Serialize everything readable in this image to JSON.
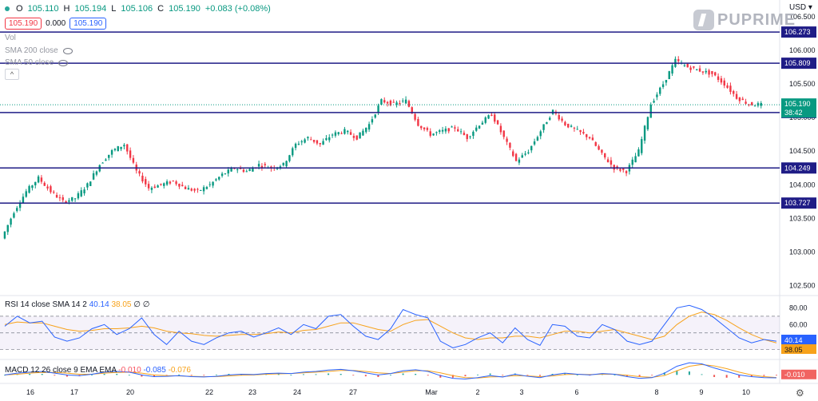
{
  "header": {
    "ohlc": {
      "open_label": "O",
      "open": "105.110",
      "high_label": "H",
      "high": "105.194",
      "low_label": "L",
      "low": "105.106",
      "close_label": "C",
      "close": "105.190",
      "change": "+0.083 (+0.08%)"
    },
    "sell": "105.190",
    "spread": "0.000",
    "buy": "105.190",
    "vol_label": "Vol",
    "sma200_label": "SMA 200 close",
    "sma50_label": "SMA 50 close",
    "currency": "USD",
    "brand": "PUPRIME"
  },
  "colors": {
    "up": "#089981",
    "down": "#f23645",
    "level_line": "#1f1c86",
    "rsi_line": "#2962ff",
    "rsi_ma": "#f7a21b",
    "macd_line": "#2962ff",
    "signal_line": "#f7a21b"
  },
  "chart_data": [
    {
      "type": "candlestick",
      "price_axis": {
        "ticks": [
          102.5,
          103.0,
          103.5,
          104.0,
          104.5,
          105.0,
          105.5,
          106.0,
          106.5
        ],
        "tick_labels": [
          "102.500",
          "103.000",
          "103.500",
          "104.000",
          "104.500",
          "105.000",
          "105.500",
          "106.000",
          "106.500"
        ],
        "range": [
          102.35,
          106.75
        ]
      },
      "x_ticks": [
        "16",
        "17",
        "20",
        "22",
        "23",
        "24",
        "27",
        "Mar",
        "2",
        "3",
        "6",
        "8",
        "9",
        "10"
      ],
      "levels": [
        {
          "value": 106.273,
          "label": "106.273"
        },
        {
          "value": 105.809,
          "label": "105.809"
        },
        {
          "value": 105.075,
          "label": "105.075"
        },
        {
          "value": 104.249,
          "label": "104.249"
        },
        {
          "value": 103.727,
          "label": "103.727"
        }
      ],
      "current_price": {
        "value": 105.19,
        "label": "105.190",
        "countdown": "38:42"
      },
      "path": [
        103.2,
        103.6,
        103.9,
        104.1,
        103.9,
        103.75,
        103.8,
        104.0,
        104.3,
        104.5,
        104.6,
        104.2,
        103.95,
        104.0,
        104.05,
        103.95,
        103.9,
        104.0,
        104.15,
        104.25,
        104.2,
        104.3,
        104.25,
        104.3,
        104.6,
        104.7,
        104.6,
        104.75,
        104.8,
        104.7,
        104.9,
        105.25,
        105.2,
        105.25,
        104.9,
        104.75,
        104.8,
        104.85,
        104.7,
        104.9,
        105.05,
        104.7,
        104.35,
        104.5,
        104.8,
        105.1,
        104.9,
        104.8,
        104.7,
        104.45,
        104.25,
        104.2,
        104.5,
        105.2,
        105.5,
        105.85,
        105.75,
        105.7,
        105.65,
        105.5,
        105.3,
        105.2,
        105.19
      ]
    },
    {
      "type": "line",
      "name": "RSI",
      "legend": "RSI 14 close SMA 14 2",
      "values_label": [
        "40.14",
        "38.05"
      ],
      "ticks": [
        80,
        60,
        40
      ],
      "tick_labels": [
        "80.00",
        "60.00",
        "40.00"
      ],
      "band": [
        30,
        70
      ],
      "current": {
        "rsi": "40.14",
        "ma": "38.05"
      },
      "series_rsi": [
        58,
        70,
        62,
        64,
        45,
        40,
        44,
        55,
        60,
        48,
        55,
        68,
        48,
        36,
        52,
        40,
        36,
        44,
        50,
        52,
        45,
        50,
        56,
        48,
        60,
        55,
        70,
        72,
        58,
        46,
        42,
        55,
        78,
        72,
        68,
        40,
        32,
        36,
        44,
        50,
        38,
        56,
        42,
        35,
        60,
        58,
        46,
        44,
        60,
        54,
        40,
        36,
        40,
        60,
        80,
        83,
        78,
        68,
        56,
        44,
        38,
        42,
        40
      ],
      "series_ma": [
        60,
        63,
        62,
        62,
        58,
        54,
        52,
        53,
        55,
        55,
        56,
        58,
        56,
        52,
        50,
        49,
        47,
        46,
        47,
        48,
        48,
        49,
        51,
        50,
        53,
        54,
        58,
        62,
        62,
        58,
        54,
        52,
        60,
        65,
        66,
        58,
        50,
        44,
        42,
        44,
        44,
        46,
        46,
        44,
        48,
        52,
        52,
        50,
        52,
        54,
        50,
        46,
        42,
        46,
        60,
        70,
        75,
        72,
        65,
        56,
        48,
        42,
        38
      ]
    },
    {
      "type": "line",
      "name": "MACD",
      "legend": "MACD 12 26 close 9 EMA EMA",
      "values_label": [
        "-0.010",
        "-0.085",
        "-0.076"
      ],
      "current": {
        "hist": "-0.010",
        "macd": "-0.085",
        "signal": "-0.076"
      },
      "series_macd": [
        0,
        0.05,
        0.08,
        0.1,
        0.05,
        0.0,
        -0.02,
        0.02,
        0.08,
        0.1,
        0.08,
        0.0,
        -0.05,
        -0.04,
        -0.02,
        -0.05,
        -0.06,
        -0.04,
        0.0,
        0.02,
        0.01,
        0.04,
        0.05,
        0.04,
        0.08,
        0.1,
        0.14,
        0.16,
        0.12,
        0.06,
        0.0,
        0.04,
        0.12,
        0.15,
        0.1,
        -0.02,
        -0.1,
        -0.12,
        -0.08,
        -0.02,
        -0.06,
        0.02,
        -0.04,
        -0.08,
        0.0,
        0.05,
        0.02,
        0.0,
        0.04,
        0.02,
        -0.05,
        -0.1,
        -0.08,
        0.05,
        0.25,
        0.35,
        0.32,
        0.2,
        0.1,
        0.0,
        -0.05,
        -0.08,
        -0.085
      ],
      "series_signal": [
        0,
        0.02,
        0.05,
        0.07,
        0.07,
        0.05,
        0.02,
        0.02,
        0.05,
        0.07,
        0.08,
        0.05,
        0.0,
        -0.02,
        -0.03,
        -0.04,
        -0.05,
        -0.05,
        -0.03,
        -0.01,
        0.0,
        0.02,
        0.03,
        0.04,
        0.06,
        0.08,
        0.1,
        0.13,
        0.13,
        0.1,
        0.06,
        0.04,
        0.08,
        0.12,
        0.12,
        0.06,
        -0.02,
        -0.08,
        -0.09,
        -0.06,
        -0.05,
        -0.02,
        -0.03,
        -0.05,
        -0.03,
        0.01,
        0.02,
        0.01,
        0.02,
        0.02,
        -0.01,
        -0.05,
        -0.07,
        -0.02,
        0.12,
        0.25,
        0.3,
        0.26,
        0.18,
        0.08,
        0.0,
        -0.05,
        -0.076
      ]
    }
  ]
}
